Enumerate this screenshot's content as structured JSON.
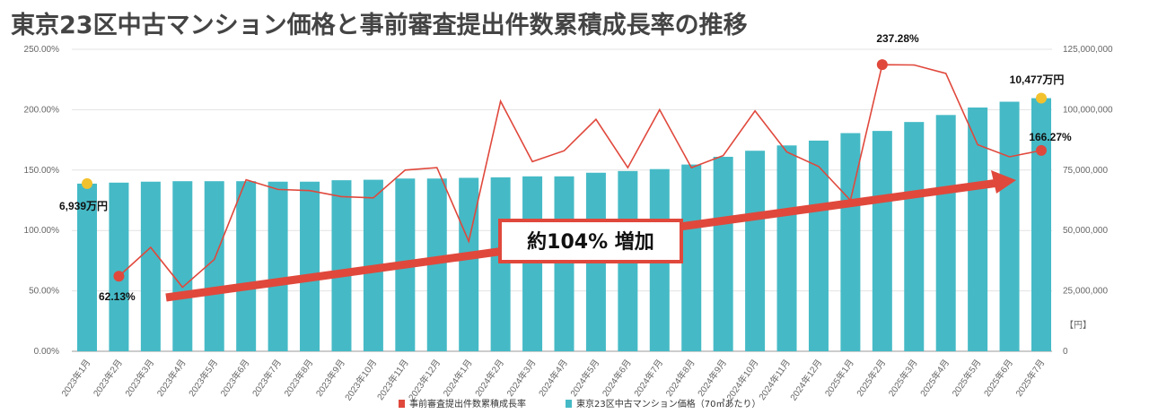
{
  "chart_data": {
    "type": "bar+line",
    "title": "東京23区中古マンション価格と事前審査提出件数累積成長率の推移",
    "categories": [
      "2023年1月",
      "2023年2月",
      "2023年3月",
      "2023年4月",
      "2023年5月",
      "2023年6月",
      "2023年7月",
      "2023年8月",
      "2023年9月",
      "2023年10月",
      "2023年11月",
      "2023年12月",
      "2024年1月",
      "2024年2月",
      "2024年3月",
      "2024年4月",
      "2024年5月",
      "2024年6月",
      "2024年7月",
      "2024年8月",
      "2024年9月",
      "2024年10月",
      "2024年11月",
      "2024年12月",
      "2025年1月",
      "2025年2月",
      "2025年3月",
      "2025年4月",
      "2025年5月",
      "2025年6月",
      "2025年7月"
    ],
    "series": [
      {
        "name": "事前審査提出件数累積成長率",
        "type": "line",
        "axis": "left",
        "color": "#e0483c",
        "values": [
          null,
          62.13,
          86,
          53,
          76,
          142,
          134,
          133,
          128,
          127,
          150,
          152,
          91,
          207,
          157,
          166,
          192,
          152,
          200,
          152,
          162,
          199,
          165,
          153,
          125,
          237.28,
          237,
          230,
          171,
          161,
          166.27
        ]
      },
      {
        "name": "東京23区中古マンション価格（70㎡あたり）",
        "type": "bar",
        "axis": "right",
        "color": "#45bac6",
        "values": [
          69390000,
          69800000,
          70200000,
          70400000,
          70400000,
          70400000,
          70200000,
          70200000,
          70800000,
          71000000,
          71500000,
          71500000,
          71800000,
          72000000,
          72400000,
          72400000,
          73900000,
          74600000,
          75400000,
          77300000,
          80500000,
          83000000,
          85200000,
          87200000,
          90300000,
          91200000,
          94900000,
          97800000,
          100900000,
          103300000,
          104770000
        ]
      }
    ],
    "left_axis": {
      "ylim": [
        0,
        250
      ],
      "ticks": [
        "0.00%",
        "50.00%",
        "100.00%",
        "150.00%",
        "200.00%",
        "250.00%"
      ]
    },
    "right_axis": {
      "ylim": [
        0,
        125000000
      ],
      "unit": "【円】",
      "ticks": [
        "0",
        "25,000,000",
        "50,000,000",
        "75,000,000",
        "100,000,000",
        "125,000,000"
      ]
    },
    "annotations": {
      "start_price": "6,939万円",
      "end_price": "10,477万円",
      "start_rate": "62.13%",
      "peak_rate": "237.28%",
      "end_rate": "166.27%",
      "increase": "約104% 増加"
    },
    "marker_color": "#f2c12e",
    "legend_position": "bottom",
    "grid": true
  }
}
